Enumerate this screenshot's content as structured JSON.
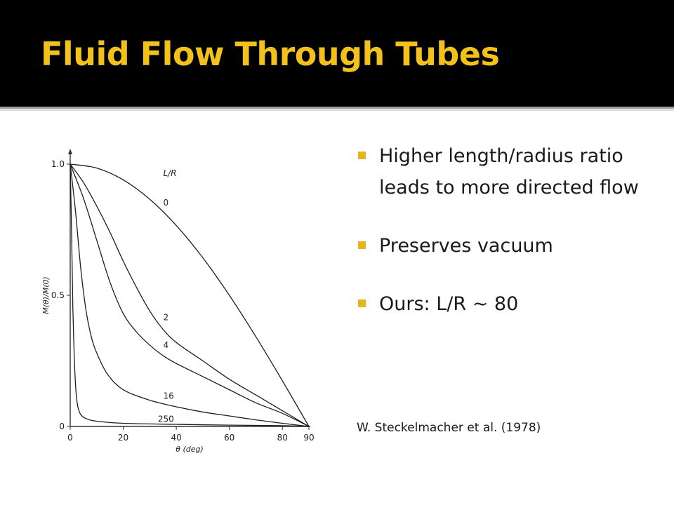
{
  "slide": {
    "title": "Fluid Flow Through Tubes",
    "bullets": [
      "Higher length/radius ratio leads to more directed flow",
      "Preserves vacuum",
      "Ours: L/R ~ 80"
    ],
    "citation": "W. Steckelmacher et al. (1978)",
    "colors": {
      "title": "#f2c21b",
      "bullet_marker": "#e8b41e",
      "header_bg": "#000000"
    }
  },
  "chart_data": {
    "type": "line",
    "xlabel": "θ (deg)",
    "ylabel": "M(θ)/M(0)",
    "legend_title": "L/R",
    "xlim": [
      0,
      90
    ],
    "ylim": [
      0,
      1.0
    ],
    "x_ticks": [
      "0",
      "20",
      "40",
      "60",
      "80",
      "90"
    ],
    "x_tick_values": [
      0,
      20,
      40,
      60,
      80,
      90
    ],
    "y_ticks": [
      "0",
      "0.5",
      "1.0"
    ],
    "y_tick_values": [
      0,
      0.5,
      1.0
    ],
    "grid": false,
    "series": [
      {
        "name": "0",
        "x": [
          0,
          10,
          20,
          30,
          40,
          50,
          60,
          70,
          80,
          90
        ],
        "y": [
          1.0,
          0.985,
          0.94,
          0.866,
          0.766,
          0.643,
          0.5,
          0.342,
          0.174,
          0.0
        ]
      },
      {
        "name": "2",
        "x": [
          0,
          5,
          10,
          15,
          20,
          25,
          30,
          35,
          40,
          50,
          60,
          70,
          80,
          90
        ],
        "y": [
          1.0,
          0.93,
          0.84,
          0.74,
          0.63,
          0.53,
          0.44,
          0.37,
          0.32,
          0.25,
          0.18,
          0.12,
          0.06,
          0.0
        ]
      },
      {
        "name": "4",
        "x": [
          0,
          5,
          10,
          15,
          20,
          25,
          30,
          35,
          40,
          50,
          60,
          70,
          80,
          90
        ],
        "y": [
          1.0,
          0.87,
          0.71,
          0.55,
          0.43,
          0.36,
          0.31,
          0.27,
          0.24,
          0.19,
          0.14,
          0.09,
          0.05,
          0.0
        ]
      },
      {
        "name": "16",
        "x": [
          0,
          2,
          4,
          6,
          8,
          10,
          14,
          20,
          30,
          40,
          50,
          60,
          70,
          80,
          90
        ],
        "y": [
          1.0,
          0.82,
          0.6,
          0.44,
          0.34,
          0.28,
          0.2,
          0.14,
          0.1,
          0.075,
          0.055,
          0.04,
          0.025,
          0.012,
          0.0
        ]
      },
      {
        "name": "250",
        "x": [
          0,
          0.5,
          1,
          1.5,
          2,
          2.5,
          3,
          4,
          6,
          10,
          20,
          40,
          60,
          80,
          90
        ],
        "y": [
          1.0,
          0.75,
          0.45,
          0.27,
          0.16,
          0.1,
          0.07,
          0.045,
          0.03,
          0.02,
          0.012,
          0.008,
          0.005,
          0.003,
          0.0
        ]
      }
    ]
  }
}
